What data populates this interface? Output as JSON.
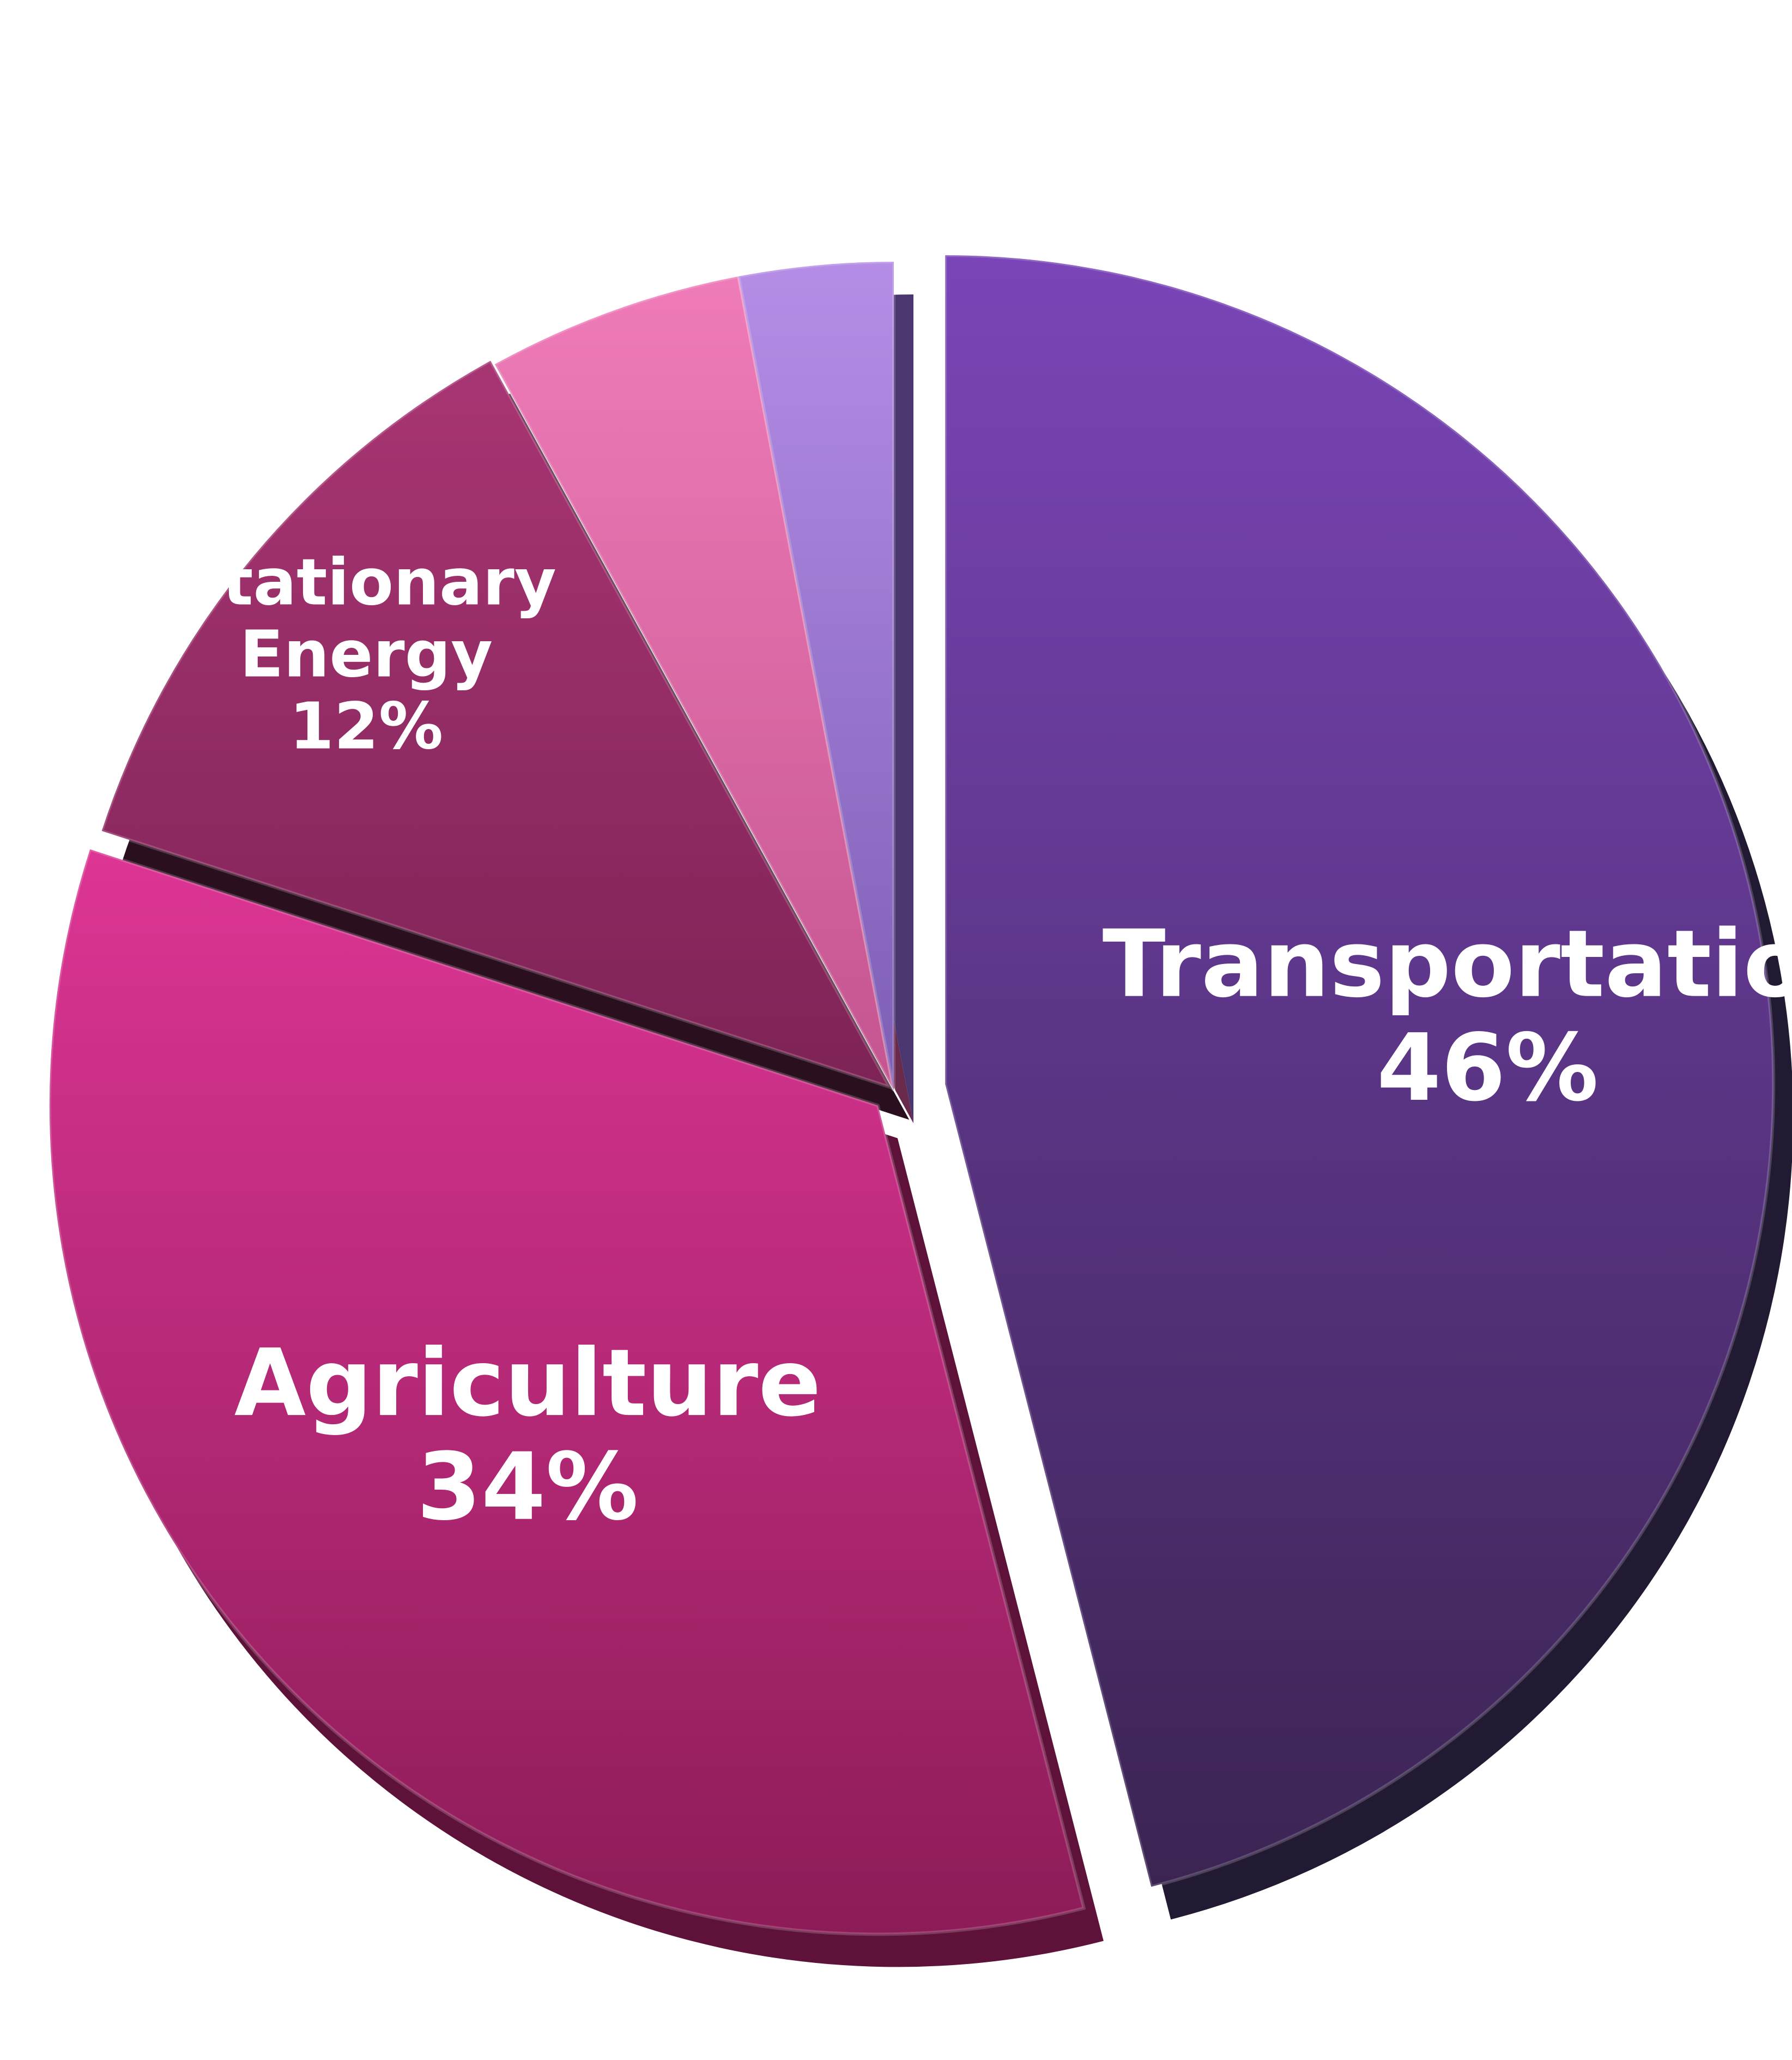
{
  "chart_data": {
    "type": "pie",
    "title": "",
    "slices": [
      {
        "label": "Transportation",
        "value": 46,
        "value_label": "46%",
        "color": "#4f2f7a"
      },
      {
        "label": "Agriculture",
        "value": 34,
        "value_label": "34%",
        "color": "#c02a78"
      },
      {
        "label": "Stationary Energy",
        "value": 12,
        "value_label": "12%",
        "color": "#9a2e66"
      },
      {
        "label": "",
        "value": 5,
        "value_label": "",
        "color": "#e46fac"
      },
      {
        "label": "",
        "value": 3,
        "value_label": "",
        "color": "#a47fd6"
      }
    ],
    "legend": "none",
    "exploded": true,
    "style": "3d-bevel"
  }
}
